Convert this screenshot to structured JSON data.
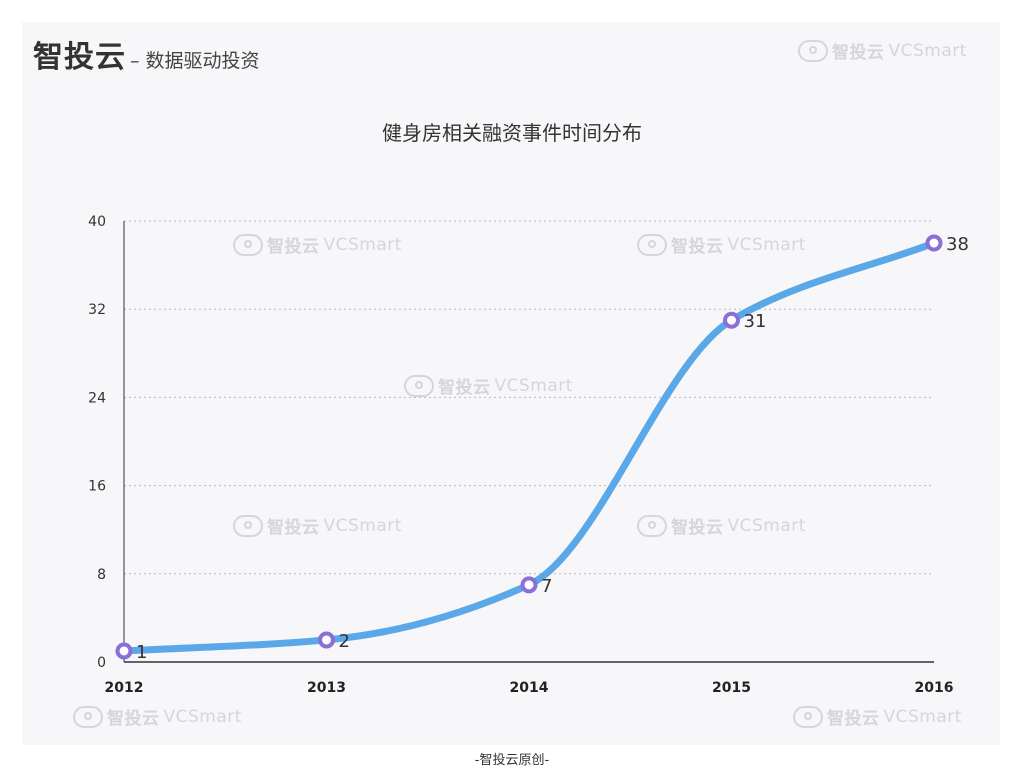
{
  "brand": {
    "name": "智投云",
    "slogan": "– 数据驱动投资"
  },
  "watermark": {
    "zh": "智投云",
    "en": "VCSmart",
    "icon": "cloud-logo-icon"
  },
  "footer": "-智投云原创-",
  "colors": {
    "line": "#5aa8e8",
    "marker_border": "#8a6fd6",
    "marker_fill": "#ffffff",
    "grid": "#b9b9b9",
    "axis": "#333333",
    "panel": "#f7f7f9"
  },
  "chart_data": {
    "type": "line",
    "title": "健身房相关融资事件时间分布",
    "categories": [
      "2012",
      "2013",
      "2014",
      "2015",
      "2016"
    ],
    "values": [
      1,
      2,
      7,
      31,
      38
    ],
    "ylim": [
      0,
      40
    ],
    "yticks": [
      "0",
      "8",
      "16",
      "24",
      "32",
      "40"
    ],
    "grid": true,
    "smooth": true,
    "data_labels": true
  }
}
